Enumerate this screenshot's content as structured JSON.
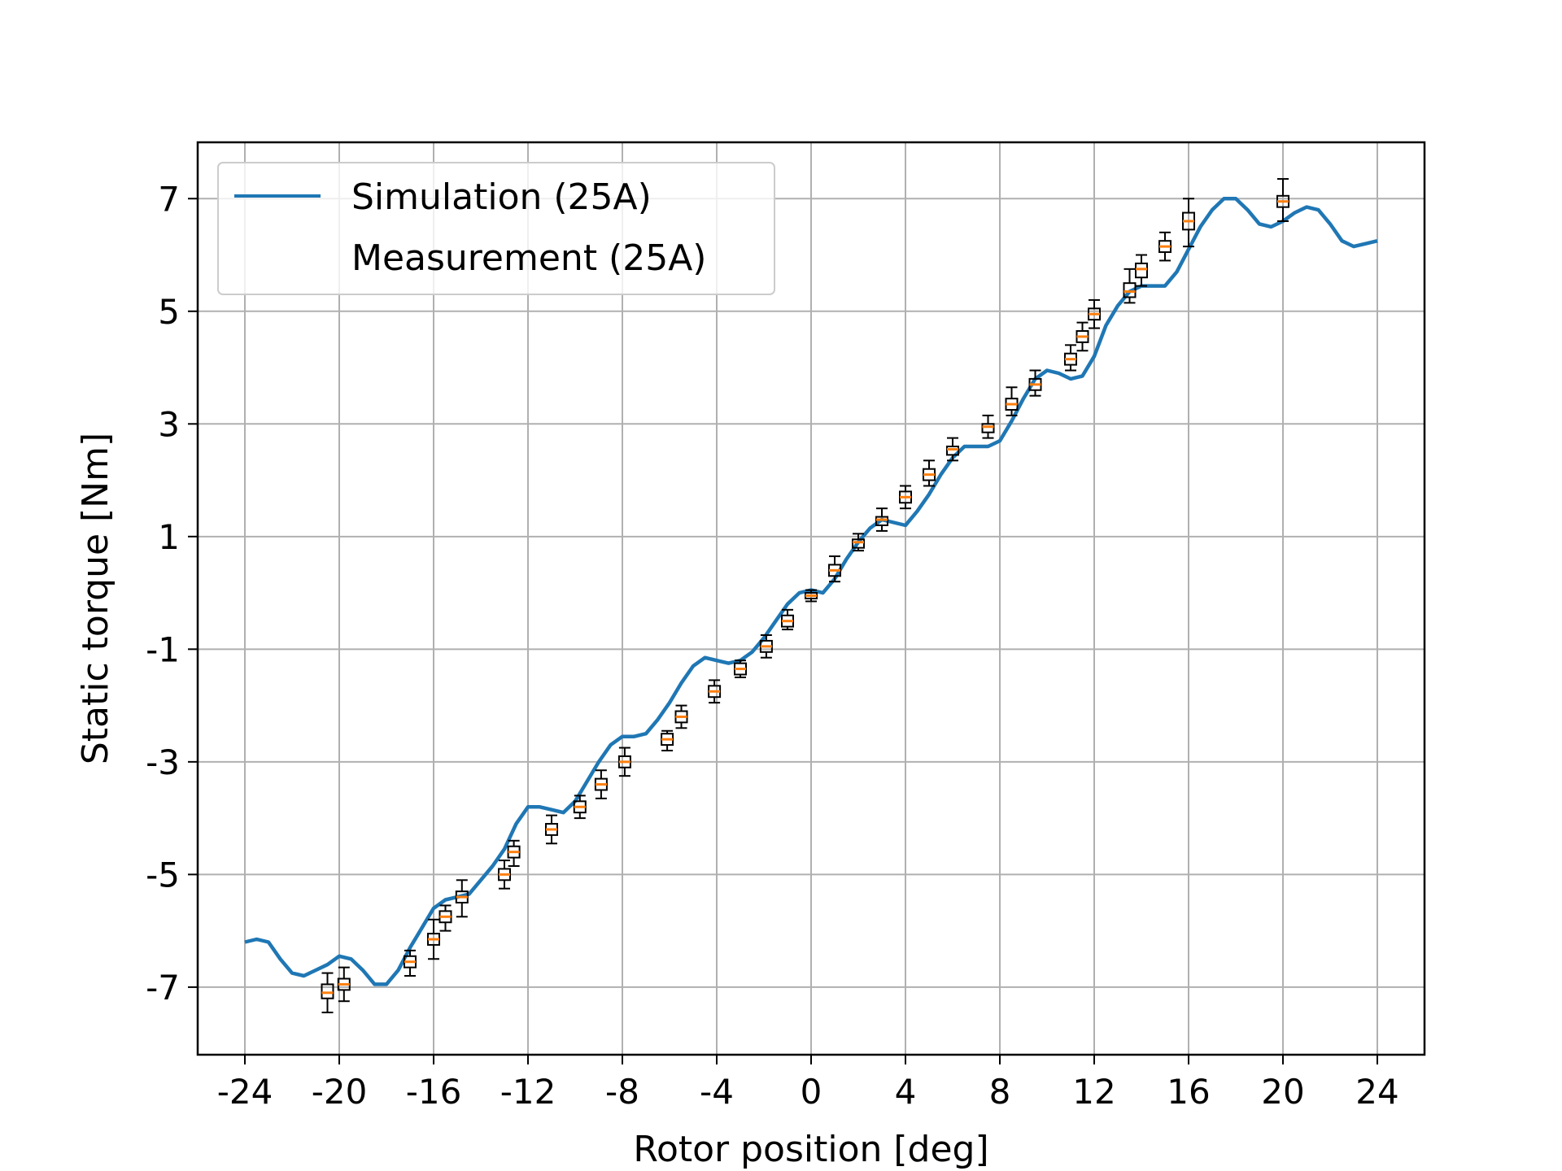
{
  "chart_data": {
    "type": "line",
    "xlabel": "Rotor position [deg]",
    "ylabel": "Static torque [Nm]",
    "xlim": [
      -26,
      26
    ],
    "ylim": [
      -8.2,
      8
    ],
    "xticks": [
      -24,
      -20,
      -16,
      -12,
      -8,
      -4,
      0,
      4,
      8,
      12,
      16,
      20,
      24
    ],
    "yticks": [
      -7,
      -5,
      -3,
      -1,
      1,
      3,
      5,
      7
    ],
    "grid": true,
    "legend_position": "top-left",
    "legend": [
      "Simulation (25A)",
      "Measurement (25A)"
    ],
    "colors": {
      "simulation": "#1f77b4",
      "median": "#ff7f0e",
      "box": "#000000",
      "grid": "#b0b0b0"
    },
    "series": [
      {
        "name": "Simulation (25A)",
        "type": "line",
        "x": [
          -24,
          -23.5,
          -23,
          -22.5,
          -22,
          -21.5,
          -21,
          -20.5,
          -20,
          -19.5,
          -19,
          -18.5,
          -18,
          -17.5,
          -17,
          -16.5,
          -16,
          -15.5,
          -15,
          -14.5,
          -14,
          -13.5,
          -13,
          -12.5,
          -12,
          -11.5,
          -11,
          -10.5,
          -10,
          -9.5,
          -9,
          -8.5,
          -8,
          -7.5,
          -7,
          -6.5,
          -6,
          -5.5,
          -5,
          -4.5,
          -4,
          -3.5,
          -3,
          -2.5,
          -2,
          -1.5,
          -1,
          -0.5,
          0,
          0.5,
          1,
          1.5,
          2,
          2.5,
          3,
          3.5,
          4,
          4.5,
          5,
          5.5,
          6,
          6.5,
          7,
          7.5,
          8,
          8.5,
          9,
          9.5,
          10,
          10.5,
          11,
          11.5,
          12,
          12.5,
          13,
          13.5,
          14,
          14.5,
          15,
          15.5,
          16,
          16.5,
          17,
          17.5,
          18,
          18.5,
          19,
          19.5,
          20,
          20.5,
          21,
          21.5,
          22,
          22.5,
          23,
          23.5,
          24
        ],
        "y": [
          -6.2,
          -6.15,
          -6.2,
          -6.5,
          -6.75,
          -6.8,
          -6.7,
          -6.6,
          -6.45,
          -6.5,
          -6.7,
          -6.95,
          -6.95,
          -6.7,
          -6.3,
          -5.95,
          -5.6,
          -5.45,
          -5.4,
          -5.35,
          -5.1,
          -4.85,
          -4.55,
          -4.1,
          -3.8,
          -3.8,
          -3.85,
          -3.9,
          -3.7,
          -3.35,
          -3.0,
          -2.7,
          -2.55,
          -2.55,
          -2.5,
          -2.25,
          -1.95,
          -1.6,
          -1.3,
          -1.15,
          -1.2,
          -1.25,
          -1.2,
          -1.05,
          -0.8,
          -0.5,
          -0.2,
          0.0,
          0.05,
          0.0,
          0.25,
          0.6,
          0.9,
          1.15,
          1.3,
          1.25,
          1.2,
          1.45,
          1.75,
          2.1,
          2.4,
          2.6,
          2.6,
          2.6,
          2.7,
          3.05,
          3.45,
          3.8,
          3.95,
          3.9,
          3.8,
          3.85,
          4.2,
          4.75,
          5.1,
          5.35,
          5.45,
          5.45,
          5.45,
          5.7,
          6.1,
          6.5,
          6.8,
          7.0,
          7.0,
          6.8,
          6.55,
          6.5,
          6.6,
          6.75,
          6.85,
          6.8,
          6.55,
          6.25,
          6.15,
          6.2,
          6.25
        ]
      },
      {
        "name": "Measurement (25A)",
        "type": "box",
        "boxes": [
          {
            "x": -20.5,
            "median": -7.1,
            "q1": -7.2,
            "q3": -6.95,
            "whislo": -7.45,
            "whishi": -6.75
          },
          {
            "x": -19.8,
            "median": -6.95,
            "q1": -7.05,
            "q3": -6.85,
            "whislo": -7.25,
            "whishi": -6.65
          },
          {
            "x": -17.0,
            "median": -6.55,
            "q1": -6.65,
            "q3": -6.45,
            "whislo": -6.8,
            "whishi": -6.35
          },
          {
            "x": -16.0,
            "median": -6.15,
            "q1": -6.25,
            "q3": -6.05,
            "whislo": -6.5,
            "whishi": -5.8
          },
          {
            "x": -15.5,
            "median": -5.75,
            "q1": -5.85,
            "q3": -5.65,
            "whislo": -6.0,
            "whishi": -5.55
          },
          {
            "x": -14.8,
            "median": -5.4,
            "q1": -5.5,
            "q3": -5.3,
            "whislo": -5.75,
            "whishi": -5.1
          },
          {
            "x": -13.0,
            "median": -5.0,
            "q1": -5.1,
            "q3": -4.9,
            "whislo": -5.25,
            "whishi": -4.75
          },
          {
            "x": -12.6,
            "median": -4.6,
            "q1": -4.7,
            "q3": -4.5,
            "whislo": -4.85,
            "whishi": -4.4
          },
          {
            "x": -11.0,
            "median": -4.2,
            "q1": -4.3,
            "q3": -4.1,
            "whislo": -4.45,
            "whishi": -3.95
          },
          {
            "x": -9.8,
            "median": -3.8,
            "q1": -3.9,
            "q3": -3.7,
            "whislo": -4.0,
            "whishi": -3.6
          },
          {
            "x": -8.9,
            "median": -3.4,
            "q1": -3.5,
            "q3": -3.3,
            "whislo": -3.65,
            "whishi": -3.15
          },
          {
            "x": -7.9,
            "median": -3.0,
            "q1": -3.1,
            "q3": -2.9,
            "whislo": -3.25,
            "whishi": -2.75
          },
          {
            "x": -6.1,
            "median": -2.6,
            "q1": -2.7,
            "q3": -2.5,
            "whislo": -2.8,
            "whishi": -2.45
          },
          {
            "x": -5.5,
            "median": -2.2,
            "q1": -2.3,
            "q3": -2.1,
            "whislo": -2.4,
            "whishi": -2.0
          },
          {
            "x": -4.1,
            "median": -1.75,
            "q1": -1.85,
            "q3": -1.65,
            "whislo": -1.95,
            "whishi": -1.55
          },
          {
            "x": -3.0,
            "median": -1.35,
            "q1": -1.45,
            "q3": -1.25,
            "whislo": -1.5,
            "whishi": -1.2
          },
          {
            "x": -1.9,
            "median": -0.95,
            "q1": -1.05,
            "q3": -0.85,
            "whislo": -1.15,
            "whishi": -0.75
          },
          {
            "x": -1.0,
            "median": -0.5,
            "q1": -0.6,
            "q3": -0.4,
            "whislo": -0.65,
            "whishi": -0.3
          },
          {
            "x": 0.0,
            "median": -0.05,
            "q1": -0.1,
            "q3": 0.0,
            "whislo": -0.15,
            "whishi": 0.05
          },
          {
            "x": 1.0,
            "median": 0.4,
            "q1": 0.3,
            "q3": 0.5,
            "whislo": 0.2,
            "whishi": 0.65
          },
          {
            "x": 2.0,
            "median": 0.9,
            "q1": 0.8,
            "q3": 0.95,
            "whislo": 0.75,
            "whishi": 1.05
          },
          {
            "x": 3.0,
            "median": 1.3,
            "q1": 1.2,
            "q3": 1.35,
            "whislo": 1.1,
            "whishi": 1.5
          },
          {
            "x": 4.0,
            "median": 1.7,
            "q1": 1.6,
            "q3": 1.8,
            "whislo": 1.5,
            "whishi": 1.9
          },
          {
            "x": 5.0,
            "median": 2.1,
            "q1": 2.0,
            "q3": 2.2,
            "whislo": 1.9,
            "whishi": 2.35
          },
          {
            "x": 6.0,
            "median": 2.55,
            "q1": 2.45,
            "q3": 2.6,
            "whislo": 2.35,
            "whishi": 2.75
          },
          {
            "x": 7.5,
            "median": 2.95,
            "q1": 2.85,
            "q3": 3.0,
            "whislo": 2.75,
            "whishi": 3.15
          },
          {
            "x": 8.5,
            "median": 3.35,
            "q1": 3.25,
            "q3": 3.45,
            "whislo": 3.15,
            "whishi": 3.65
          },
          {
            "x": 9.5,
            "median": 3.7,
            "q1": 3.6,
            "q3": 3.8,
            "whislo": 3.5,
            "whishi": 3.95
          },
          {
            "x": 11.0,
            "median": 4.15,
            "q1": 4.05,
            "q3": 4.25,
            "whislo": 3.95,
            "whishi": 4.4
          },
          {
            "x": 11.5,
            "median": 4.55,
            "q1": 4.45,
            "q3": 4.65,
            "whislo": 4.3,
            "whishi": 4.8
          },
          {
            "x": 12.0,
            "median": 4.95,
            "q1": 4.85,
            "q3": 5.05,
            "whislo": 4.7,
            "whishi": 5.2
          },
          {
            "x": 13.5,
            "median": 5.35,
            "q1": 5.25,
            "q3": 5.5,
            "whislo": 5.15,
            "whishi": 5.75
          },
          {
            "x": 14.0,
            "median": 5.75,
            "q1": 5.6,
            "q3": 5.85,
            "whislo": 5.45,
            "whishi": 6.0
          },
          {
            "x": 15.0,
            "median": 6.15,
            "q1": 6.05,
            "q3": 6.25,
            "whislo": 5.9,
            "whishi": 6.4
          },
          {
            "x": 16.0,
            "median": 6.6,
            "q1": 6.45,
            "q3": 6.75,
            "whislo": 6.15,
            "whishi": 7.0
          },
          {
            "x": 20.0,
            "median": 6.95,
            "q1": 6.85,
            "q3": 7.05,
            "whislo": 6.6,
            "whishi": 7.35
          }
        ]
      }
    ]
  }
}
